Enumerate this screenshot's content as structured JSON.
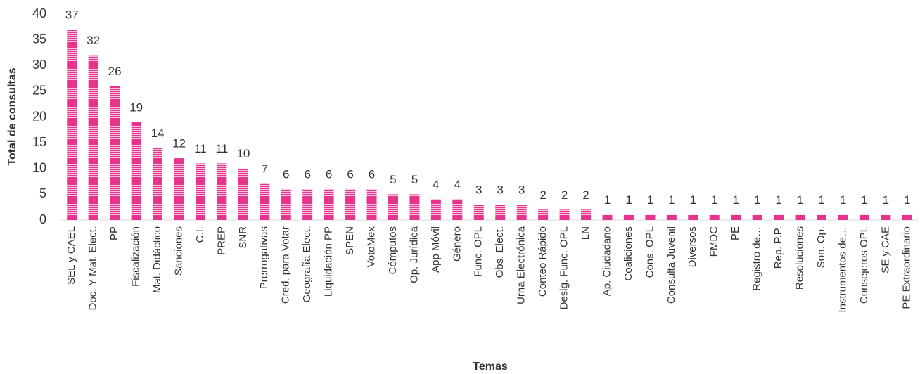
{
  "chart_data": {
    "type": "bar",
    "x_label": "Temas",
    "y_label": "Total de consultas",
    "categories": [
      "SEL y CAEL",
      "Doc. Y Mat. Elect.",
      "PP",
      "Fiscalización",
      "Mat. Didáctico",
      "Sanciones",
      "C.I.",
      "PREP",
      "SNR",
      "Prerrogativas",
      "Cred. para Votar",
      "Geografía Elect.",
      "Liquidación PP",
      "SPEN",
      "VotoMex",
      "Cómputos",
      "Op. Jurídica",
      "App Móvil",
      "Género",
      "Func. OPL",
      "Obs. Elect.",
      "Urna Electrónica",
      "Conteo Rápido",
      "Desig. Func. OPL",
      "LN",
      "Ap. Ciudadano",
      "Coaliciones",
      "Cons. OPL",
      "Consulta Juvenil",
      "Diversos",
      "FMDC",
      "PE",
      "Registro de…",
      "Rep. P.P.",
      "Resoluciones",
      "Son. Op.",
      "Instrumentos de…",
      "Consejeros OPL",
      "SE y CAE",
      "PE Extraordinario"
    ],
    "values": [
      37,
      32,
      26,
      19,
      14,
      12,
      11,
      11,
      10,
      7,
      6,
      6,
      6,
      6,
      6,
      5,
      5,
      4,
      4,
      3,
      3,
      3,
      2,
      2,
      2,
      1,
      1,
      1,
      1,
      1,
      1,
      1,
      1,
      1,
      1,
      1,
      1,
      1,
      1,
      1
    ],
    "color": "#e6338c",
    "ylim": [
      0,
      40
    ],
    "yticks": [
      0,
      5,
      10,
      15,
      20,
      25,
      30,
      35,
      40
    ],
    "grid": false
  }
}
